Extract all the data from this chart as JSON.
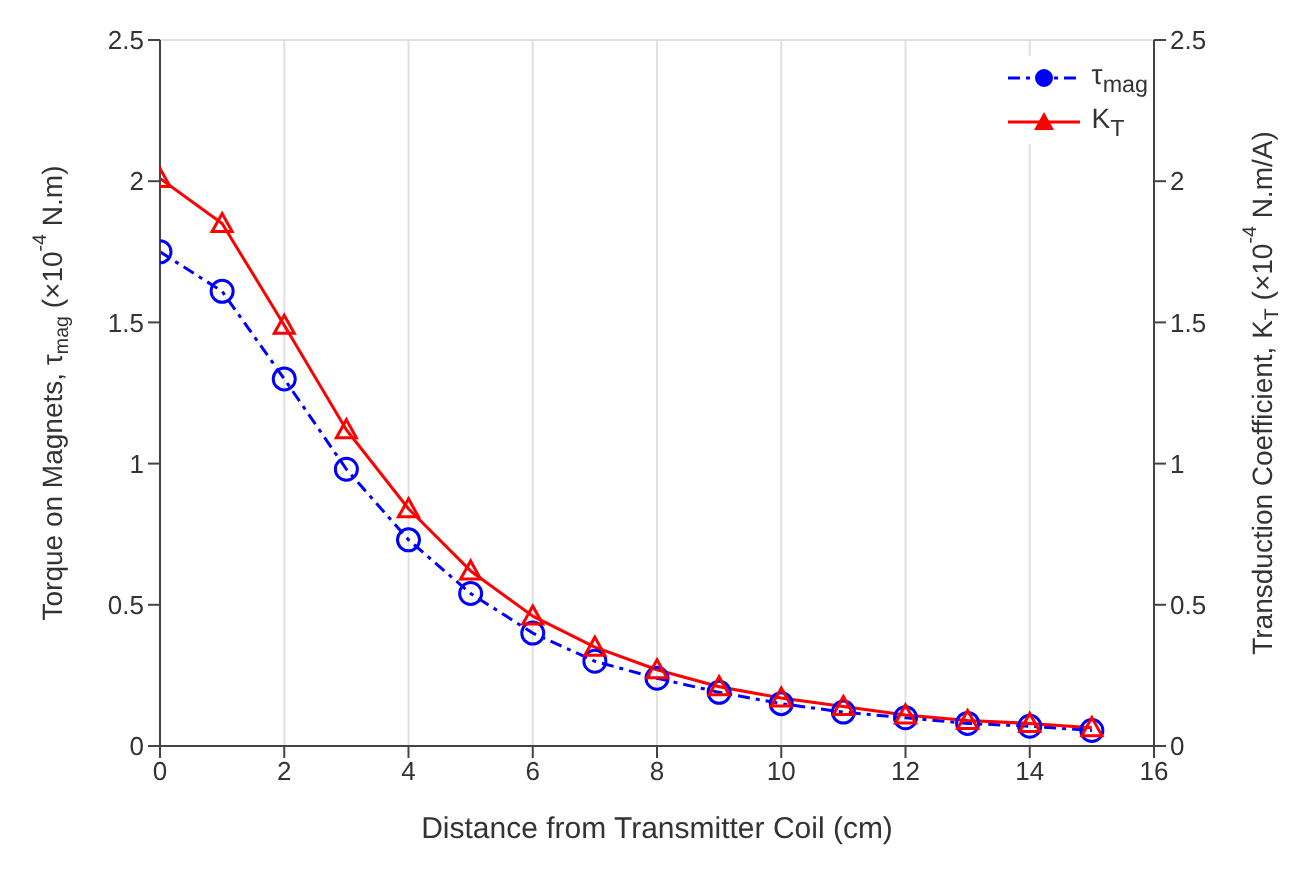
{
  "chart_data": {
    "type": "line",
    "xlabel": "Distance from Transmitter Coil (cm)",
    "ylabel": "Torque on Magnets, τ$_{mag}$ (×10$^{-4}$ N.m)",
    "y2label": "Transduction Coefficient, K$_{T}$ (×10$^{-4}$ N.m/A)",
    "x": [
      0,
      1,
      2,
      3,
      4,
      5,
      6,
      7,
      8,
      9,
      10,
      11,
      12,
      13,
      14,
      15
    ],
    "series": [
      {
        "name": "τ$_{mag}$",
        "color": "#0000ff",
        "marker": "circle",
        "line_style": "dashed",
        "values": [
          1.75,
          1.61,
          1.3,
          0.98,
          0.73,
          0.54,
          0.4,
          0.3,
          0.24,
          0.19,
          0.15,
          0.12,
          0.1,
          0.08,
          0.07,
          0.055
        ]
      },
      {
        "name": "K$_{T}$",
        "color": "#ff0000",
        "marker": "triangle",
        "line_style": "solid",
        "axis": "y2",
        "values": [
          2.01,
          1.85,
          1.49,
          1.12,
          0.84,
          0.62,
          0.46,
          0.35,
          0.27,
          0.21,
          0.17,
          0.14,
          0.11,
          0.09,
          0.08,
          0.065
        ]
      }
    ],
    "xlim": [
      0,
      16
    ],
    "xticks": [
      0,
      2,
      4,
      6,
      8,
      10,
      12,
      14,
      16
    ],
    "ylim": [
      0,
      2.5
    ],
    "yticks": [
      0,
      0.5,
      1,
      1.5,
      2,
      2.5
    ],
    "y2lim": [
      0,
      2.5
    ],
    "y2ticks": [
      0,
      0.5,
      1,
      1.5,
      2,
      2.5
    ],
    "grid": true,
    "legend": "top right"
  }
}
